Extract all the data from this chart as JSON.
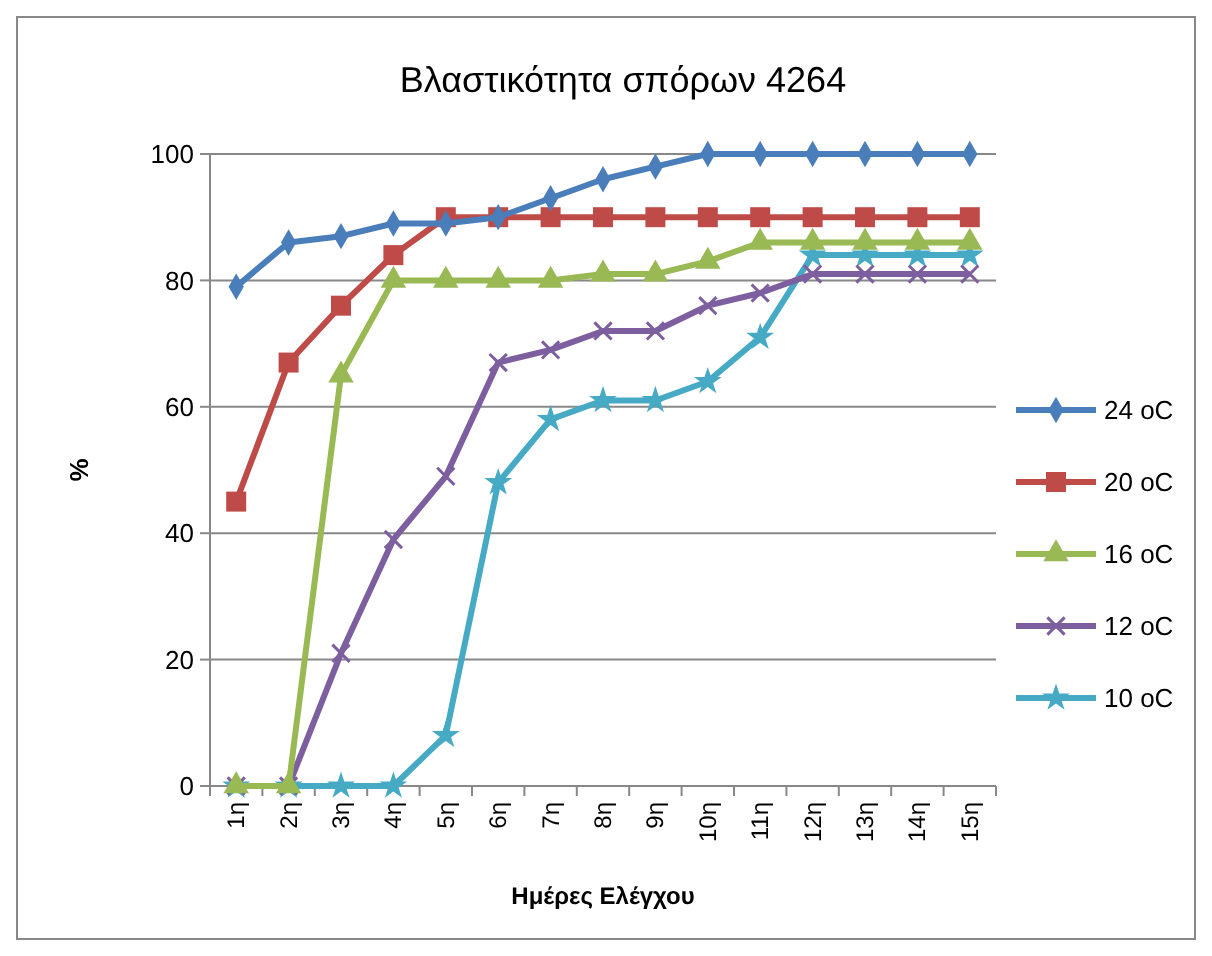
{
  "chart_data": {
    "type": "line",
    "title": "Βλαστικότητα σπόρων 4264",
    "xlabel": "Ημέρες Ελέγχου",
    "ylabel": "%",
    "categories": [
      "1η",
      "2η",
      "3η",
      "4η",
      "5η",
      "6η",
      "7η",
      "8η",
      "9η",
      "10η",
      "11η",
      "12η",
      "13η",
      "14η",
      "15η"
    ],
    "series": [
      {
        "name": "24 oC",
        "color": "#4a7ebb",
        "marker": "diamond",
        "values": [
          79,
          86,
          87,
          89,
          89,
          90,
          93,
          96,
          98,
          100,
          100,
          100,
          100,
          100,
          100
        ]
      },
      {
        "name": "20 oC",
        "color": "#be4b48",
        "marker": "square",
        "values": [
          45,
          67,
          76,
          84,
          90,
          90,
          90,
          90,
          90,
          90,
          90,
          90,
          90,
          90,
          90
        ]
      },
      {
        "name": "16 oC",
        "color": "#98b954",
        "marker": "triangle",
        "values": [
          0,
          0,
          65,
          80,
          80,
          80,
          80,
          81,
          81,
          83,
          86,
          86,
          86,
          86,
          86
        ]
      },
      {
        "name": "12 oC",
        "color": "#7d5fa0",
        "marker": "cross",
        "values": [
          0,
          0,
          21,
          39,
          49,
          67,
          69,
          72,
          72,
          76,
          78,
          81,
          81,
          81,
          81
        ]
      },
      {
        "name": "10 oC",
        "color": "#46aac5",
        "marker": "star",
        "values": [
          0,
          0,
          0,
          0,
          8,
          48,
          58,
          61,
          61,
          64,
          71,
          84,
          84,
          84,
          84
        ]
      }
    ],
    "ylim": [
      0,
      100
    ],
    "yticks": [
      0,
      20,
      40,
      60,
      80,
      100
    ],
    "grid": "y",
    "legend": "right",
    "line_style": "solid"
  }
}
